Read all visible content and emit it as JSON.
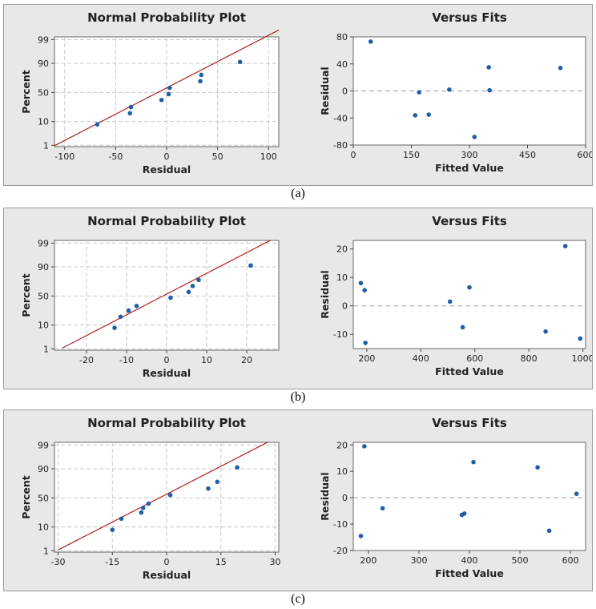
{
  "chart_data": [
    {
      "panel": "(a)",
      "type": "scatter",
      "title": "Normal Probability Plot",
      "xlabel": "Residual",
      "ylabel": "Percent",
      "xlim": [
        -110,
        110
      ],
      "xticks": [
        -100,
        -50,
        0,
        50,
        100
      ],
      "yticks": [
        1,
        10,
        50,
        90,
        99
      ],
      "y_scale": "normal-probability",
      "grid": true,
      "fit_line": {
        "x": [
          -110,
          110
        ],
        "y": [
          0.95,
          99.7
        ],
        "color": "#b22222"
      },
      "points": [
        {
          "x": -68,
          "y": 8
        },
        {
          "x": -36,
          "y": 18
        },
        {
          "x": -35,
          "y": 26
        },
        {
          "x": -5,
          "y": 37
        },
        {
          "x": 2,
          "y": 47
        },
        {
          "x": 3,
          "y": 58
        },
        {
          "x": 33,
          "y": 69
        },
        {
          "x": 34,
          "y": 78
        },
        {
          "x": 72,
          "y": 91
        }
      ]
    },
    {
      "panel": "(a)",
      "type": "scatter",
      "title": "Versus Fits",
      "xlabel": "Fitted Value",
      "ylabel": "Residual",
      "xlim": [
        0,
        600
      ],
      "ylim": [
        -80,
        80
      ],
      "xticks": [
        0,
        150,
        300,
        450,
        600
      ],
      "yticks": [
        -80,
        -40,
        0,
        40,
        80
      ],
      "reference_line": 0,
      "points": [
        {
          "x": 45,
          "y": 73
        },
        {
          "x": 160,
          "y": -36
        },
        {
          "x": 170,
          "y": -2
        },
        {
          "x": 195,
          "y": -35
        },
        {
          "x": 248,
          "y": 2
        },
        {
          "x": 313,
          "y": -68
        },
        {
          "x": 350,
          "y": 35
        },
        {
          "x": 352,
          "y": 1
        },
        {
          "x": 535,
          "y": 34
        }
      ]
    },
    {
      "panel": "(b)",
      "type": "scatter",
      "title": "Normal Probability Plot",
      "xlabel": "Residual",
      "ylabel": "Percent",
      "xlim": [
        -28,
        28
      ],
      "xticks": [
        -20,
        -10,
        0,
        10,
        20
      ],
      "yticks": [
        1,
        10,
        50,
        90,
        99
      ],
      "y_scale": "normal-probability",
      "grid": true,
      "fit_line": {
        "x": [
          -26,
          26
        ],
        "y": [
          1.1,
          99.3
        ],
        "color": "#b22222"
      },
      "points": [
        {
          "x": -13,
          "y": 8
        },
        {
          "x": -11.5,
          "y": 18
        },
        {
          "x": -9.5,
          "y": 26
        },
        {
          "x": -7.5,
          "y": 33
        },
        {
          "x": 1,
          "y": 47
        },
        {
          "x": 5.5,
          "y": 57
        },
        {
          "x": 6.5,
          "y": 67
        },
        {
          "x": 8,
          "y": 76
        },
        {
          "x": 21,
          "y": 91
        }
      ]
    },
    {
      "panel": "(b)",
      "type": "scatter",
      "title": "Versus Fits",
      "xlabel": "Fitted Value",
      "ylabel": "Residual",
      "xlim": [
        150,
        1010
      ],
      "ylim": [
        -15,
        23
      ],
      "xticks": [
        200,
        400,
        600,
        800,
        1000
      ],
      "yticks": [
        -10,
        0,
        10,
        20
      ],
      "reference_line": 0,
      "points": [
        {
          "x": 178,
          "y": 8
        },
        {
          "x": 192,
          "y": 5.5
        },
        {
          "x": 195,
          "y": -13
        },
        {
          "x": 508,
          "y": 1.5
        },
        {
          "x": 555,
          "y": -7.5
        },
        {
          "x": 580,
          "y": 6.5
        },
        {
          "x": 862,
          "y": -9
        },
        {
          "x": 935,
          "y": 21
        },
        {
          "x": 990,
          "y": -11.5
        }
      ]
    },
    {
      "panel": "(c)",
      "type": "scatter",
      "title": "Normal Probability Plot",
      "xlabel": "Residual",
      "ylabel": "Percent",
      "xlim": [
        -31,
        31
      ],
      "xticks": [
        -30,
        -15,
        0,
        15,
        30
      ],
      "yticks": [
        1,
        10,
        50,
        90,
        99
      ],
      "y_scale": "normal-probability",
      "grid": true,
      "fit_line": {
        "x": [
          -30,
          28
        ],
        "y": [
          1.1,
          99.3
        ],
        "color": "#b22222"
      },
      "points": [
        {
          "x": -15,
          "y": 8
        },
        {
          "x": -12.5,
          "y": 18
        },
        {
          "x": -7,
          "y": 26
        },
        {
          "x": -6.5,
          "y": 33
        },
        {
          "x": -5,
          "y": 40
        },
        {
          "x": 1,
          "y": 55
        },
        {
          "x": 11.5,
          "y": 66
        },
        {
          "x": 14,
          "y": 76
        },
        {
          "x": 19.5,
          "y": 91
        }
      ]
    },
    {
      "panel": "(c)",
      "type": "scatter",
      "title": "Versus Fits",
      "xlabel": "Fitted Value",
      "ylabel": "Residual",
      "xlim": [
        170,
        630
      ],
      "ylim": [
        -20,
        21
      ],
      "xticks": [
        200,
        300,
        400,
        500,
        600
      ],
      "yticks": [
        -20,
        -10,
        0,
        10,
        20
      ],
      "reference_line": 0,
      "points": [
        {
          "x": 185,
          "y": -14.5
        },
        {
          "x": 192,
          "y": 19.5
        },
        {
          "x": 228,
          "y": -4
        },
        {
          "x": 385,
          "y": -6.5
        },
        {
          "x": 390,
          "y": -6
        },
        {
          "x": 408,
          "y": 13.5
        },
        {
          "x": 535,
          "y": 11.5
        },
        {
          "x": 558,
          "y": -12.5
        },
        {
          "x": 612,
          "y": 1.5
        }
      ]
    }
  ],
  "panels": [
    {
      "caption": "(a)"
    },
    {
      "caption": "(b)"
    },
    {
      "caption": "(c)"
    }
  ],
  "colors": {
    "point": "#1f5fa8",
    "fit_line": "#b22222",
    "grid": "#c8c8c8",
    "plot_bg": "#ffffff",
    "panel_bg": "#e8e8e8",
    "ref_line": "#9a9a9a"
  }
}
